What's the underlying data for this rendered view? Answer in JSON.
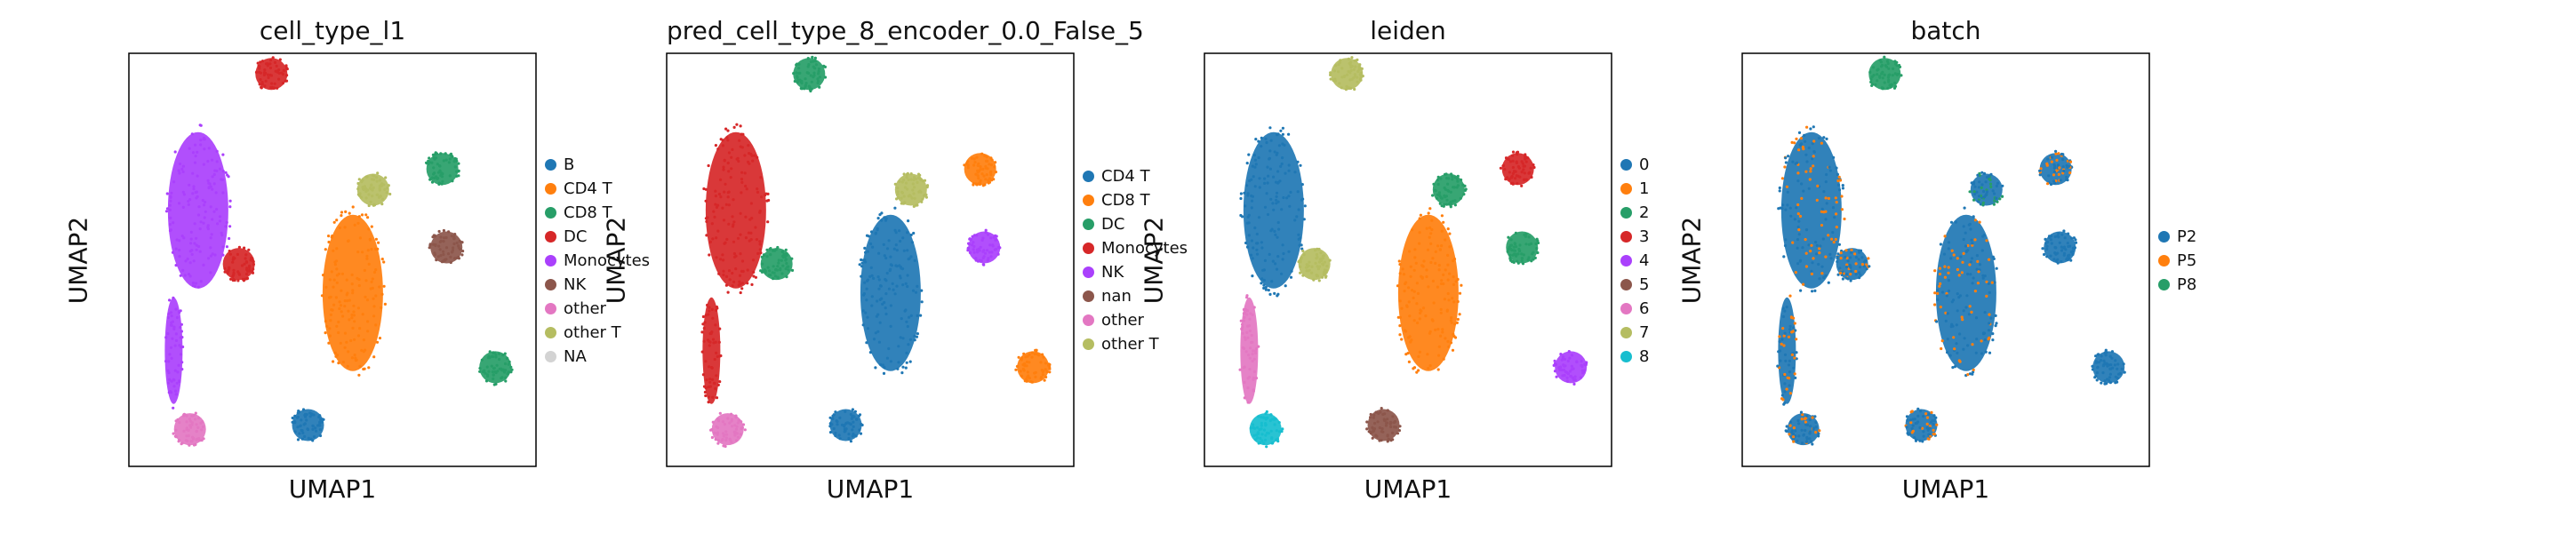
{
  "chart_data": [
    {
      "type": "scatter",
      "title": "cell_type_l1",
      "xlabel": "UMAP1",
      "ylabel": "UMAP2",
      "legend_position": "right",
      "axis_ticks": false,
      "legend": [
        {
          "label": "B",
          "color": "#1f77b4"
        },
        {
          "label": "CD4 T",
          "color": "#ff7f0e"
        },
        {
          "label": "CD8 T",
          "color": "#279e68"
        },
        {
          "label": "DC",
          "color": "#d62728"
        },
        {
          "label": "Monocytes",
          "color": "#aa40fc"
        },
        {
          "label": "NK",
          "color": "#8c564b"
        },
        {
          "label": "other",
          "color": "#e377c2"
        },
        {
          "label": "other T",
          "color": "#b5bd61"
        },
        {
          "label": "NA",
          "color": "#d3d3d3"
        }
      ],
      "clusters": [
        {
          "label": "Monocytes",
          "color": "#aa40fc",
          "x": 0.17,
          "y": 0.62,
          "spread": "large"
        },
        {
          "label": "Monocytes",
          "color": "#aa40fc",
          "x": 0.11,
          "y": 0.28,
          "spread": "stream"
        },
        {
          "label": "DC",
          "color": "#d62728",
          "x": 0.27,
          "y": 0.49
        },
        {
          "label": "DC",
          "color": "#d62728",
          "x": 0.35,
          "y": 0.95
        },
        {
          "label": "other",
          "color": "#e377c2",
          "x": 0.15,
          "y": 0.09
        },
        {
          "label": "CD4 T",
          "color": "#ff7f0e",
          "x": 0.55,
          "y": 0.42,
          "spread": "large"
        },
        {
          "label": "CD8 T",
          "color": "#279e68",
          "x": 0.77,
          "y": 0.72
        },
        {
          "label": "CD8 T",
          "color": "#279e68",
          "x": 0.9,
          "y": 0.24
        },
        {
          "label": "other T",
          "color": "#b5bd61",
          "x": 0.6,
          "y": 0.67
        },
        {
          "label": "NK",
          "color": "#8c564b",
          "x": 0.78,
          "y": 0.53
        },
        {
          "label": "B",
          "color": "#1f77b4",
          "x": 0.44,
          "y": 0.1
        }
      ]
    },
    {
      "type": "scatter",
      "title": "pred_cell_type_8_encoder_0.0_False_5",
      "xlabel": "UMAP1",
      "ylabel": "UMAP2",
      "legend_position": "right",
      "axis_ticks": false,
      "legend": [
        {
          "label": "CD4 T",
          "color": "#1f77b4"
        },
        {
          "label": "CD8 T",
          "color": "#ff7f0e"
        },
        {
          "label": "DC",
          "color": "#279e68"
        },
        {
          "label": "Monocytes",
          "color": "#d62728"
        },
        {
          "label": "NK",
          "color": "#aa40fc"
        },
        {
          "label": "nan",
          "color": "#8c564b"
        },
        {
          "label": "other",
          "color": "#e377c2"
        },
        {
          "label": "other T",
          "color": "#b5bd61"
        }
      ],
      "clusters": [
        {
          "label": "Monocytes",
          "color": "#d62728",
          "x": 0.17,
          "y": 0.62,
          "spread": "large"
        },
        {
          "label": "Monocytes",
          "color": "#d62728",
          "x": 0.11,
          "y": 0.28,
          "spread": "stream"
        },
        {
          "label": "DC",
          "color": "#279e68",
          "x": 0.27,
          "y": 0.49
        },
        {
          "label": "DC",
          "color": "#279e68",
          "x": 0.35,
          "y": 0.95
        },
        {
          "label": "other",
          "color": "#e377c2",
          "x": 0.15,
          "y": 0.09
        },
        {
          "label": "CD4 T",
          "color": "#1f77b4",
          "x": 0.55,
          "y": 0.42,
          "spread": "large"
        },
        {
          "label": "CD8 T",
          "color": "#ff7f0e",
          "x": 0.77,
          "y": 0.72
        },
        {
          "label": "CD8 T",
          "color": "#ff7f0e",
          "x": 0.9,
          "y": 0.24
        },
        {
          "label": "other T",
          "color": "#b5bd61",
          "x": 0.6,
          "y": 0.67
        },
        {
          "label": "NK",
          "color": "#aa40fc",
          "x": 0.78,
          "y": 0.53
        },
        {
          "label": "CD4 T",
          "color": "#1f77b4",
          "x": 0.44,
          "y": 0.1
        }
      ]
    },
    {
      "type": "scatter",
      "title": "leiden",
      "xlabel": "UMAP1",
      "ylabel": "UMAP2",
      "legend_position": "right",
      "axis_ticks": false,
      "legend": [
        {
          "label": "0",
          "color": "#1f77b4"
        },
        {
          "label": "1",
          "color": "#ff7f0e"
        },
        {
          "label": "2",
          "color": "#279e68"
        },
        {
          "label": "3",
          "color": "#d62728"
        },
        {
          "label": "4",
          "color": "#aa40fc"
        },
        {
          "label": "5",
          "color": "#8c564b"
        },
        {
          "label": "6",
          "color": "#e377c2"
        },
        {
          "label": "7",
          "color": "#b5bd61"
        },
        {
          "label": "8",
          "color": "#17becf"
        }
      ],
      "clusters": [
        {
          "label": "0",
          "color": "#1f77b4",
          "x": 0.17,
          "y": 0.62,
          "spread": "large"
        },
        {
          "label": "6",
          "color": "#e377c2",
          "x": 0.11,
          "y": 0.28,
          "spread": "stream"
        },
        {
          "label": "8",
          "color": "#17becf",
          "x": 0.15,
          "y": 0.09
        },
        {
          "label": "7",
          "color": "#b5bd61",
          "x": 0.27,
          "y": 0.49
        },
        {
          "label": "7",
          "color": "#b5bd61",
          "x": 0.35,
          "y": 0.95
        },
        {
          "label": "1",
          "color": "#ff7f0e",
          "x": 0.55,
          "y": 0.42,
          "spread": "large"
        },
        {
          "label": "3",
          "color": "#d62728",
          "x": 0.77,
          "y": 0.72
        },
        {
          "label": "2",
          "color": "#279e68",
          "x": 0.78,
          "y": 0.53
        },
        {
          "label": "2",
          "color": "#279e68",
          "x": 0.6,
          "y": 0.67
        },
        {
          "label": "4",
          "color": "#aa40fc",
          "x": 0.9,
          "y": 0.24
        },
        {
          "label": "5",
          "color": "#8c564b",
          "x": 0.44,
          "y": 0.1
        }
      ]
    },
    {
      "type": "scatter",
      "title": "batch",
      "xlabel": "UMAP1",
      "ylabel": "UMAP2",
      "legend_position": "right",
      "axis_ticks": false,
      "legend": [
        {
          "label": "P2",
          "color": "#1f77b4"
        },
        {
          "label": "P5",
          "color": "#ff7f0e"
        },
        {
          "label": "P8",
          "color": "#279e68"
        }
      ],
      "clusters": [
        {
          "label": "P2",
          "color": "#1f77b4",
          "x": 0.17,
          "y": 0.62,
          "spread": "large",
          "mix": "#ff7f0e"
        },
        {
          "label": "P2",
          "color": "#1f77b4",
          "x": 0.11,
          "y": 0.28,
          "spread": "stream",
          "mix": "#ff7f0e"
        },
        {
          "label": "P2",
          "color": "#1f77b4",
          "x": 0.27,
          "y": 0.49,
          "mix": "#ff7f0e"
        },
        {
          "label": "P8",
          "color": "#279e68",
          "x": 0.35,
          "y": 0.95
        },
        {
          "label": "P2",
          "color": "#1f77b4",
          "x": 0.15,
          "y": 0.09,
          "mix": "#ff7f0e"
        },
        {
          "label": "P2",
          "color": "#1f77b4",
          "x": 0.55,
          "y": 0.42,
          "spread": "large",
          "mix": "#ff7f0e"
        },
        {
          "label": "P2",
          "color": "#1f77b4",
          "x": 0.77,
          "y": 0.72,
          "mix": "#ff7f0e"
        },
        {
          "label": "P2",
          "color": "#1f77b4",
          "x": 0.6,
          "y": 0.67,
          "mix": "#279e68"
        },
        {
          "label": "P2",
          "color": "#1f77b4",
          "x": 0.78,
          "y": 0.53
        },
        {
          "label": "P2",
          "color": "#1f77b4",
          "x": 0.9,
          "y": 0.24
        },
        {
          "label": "P2",
          "color": "#1f77b4",
          "x": 0.44,
          "y": 0.1,
          "mix": "#ff7f0e"
        }
      ]
    }
  ]
}
